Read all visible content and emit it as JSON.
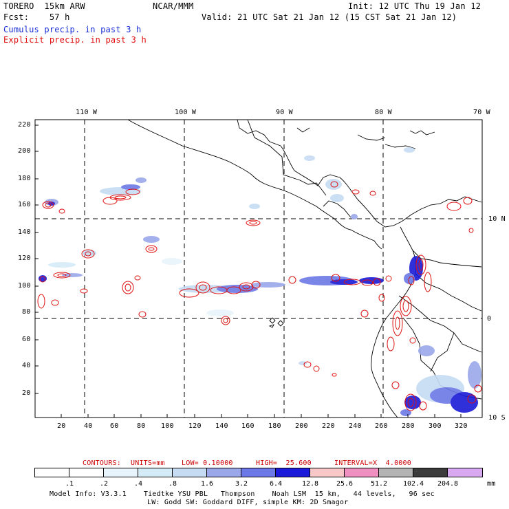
{
  "header": {
    "model": "TORERO  15km ARW",
    "org": "NCAR/MMM",
    "init": "Init: 12 UTC Thu 19 Jan 12",
    "fcst": "Fcst:    57 h",
    "valid": "Valid: 21 UTC Sat 21 Jan 12 (15 CST Sat 21 Jan 12)",
    "cumulus_label": "Cumulus precip. in past 3 h",
    "explicit_label": "Explicit precip. in past 3 h",
    "cumulus_color": "#1a2fd6",
    "explicit_color": "#e01010"
  },
  "axes": {
    "top_lon_labels": [
      "110 W",
      "100 W",
      "90 W",
      "80 W",
      "70 W"
    ],
    "right_lat_labels": [
      "10 N",
      "0",
      "10 S"
    ],
    "left_y_ticks": [
      "220",
      "200",
      "180",
      "160",
      "140",
      "120",
      "100",
      "80",
      "60",
      "40",
      "20"
    ],
    "bottom_x_ticks": [
      "20",
      "40",
      "60",
      "80",
      "100",
      "120",
      "140",
      "160",
      "180",
      "200",
      "220",
      "240",
      "260",
      "280",
      "300",
      "320"
    ]
  },
  "contours": {
    "prefix": "CONTOURS:",
    "units": "UNITS=mm",
    "low": "LOW= 0.10000",
    "high": "HIGH=  25.600",
    "interval": "INTERVAL=X  4.0000"
  },
  "color_scale": {
    "unit": "mm",
    "labels": [
      ".1",
      ".2",
      ".4",
      ".8",
      "1.6",
      "3.2",
      "6.4",
      "12.8",
      "25.6",
      "51.2",
      "102.4",
      "204.8"
    ],
    "colors": [
      "#ffffff",
      "#ffffff",
      "#e8f4fb",
      "#d4ecf8",
      "#c6dcf3",
      "#9aa8ea",
      "#6c78e6",
      "#1a1ad8",
      "#f8c8c8",
      "#f090c0",
      "#b4b4b4",
      "#3c3c3c",
      "#d8a8f0"
    ]
  },
  "footer": {
    "line1": "Model Info: V3.3.1    Tiedtke YSU PBL   Thompson    Noah LSM  15 km,   44 levels,   96 sec",
    "line2": "LW: Godd SW: Goddard DIFF, simple KM: 2D Smagor"
  }
}
